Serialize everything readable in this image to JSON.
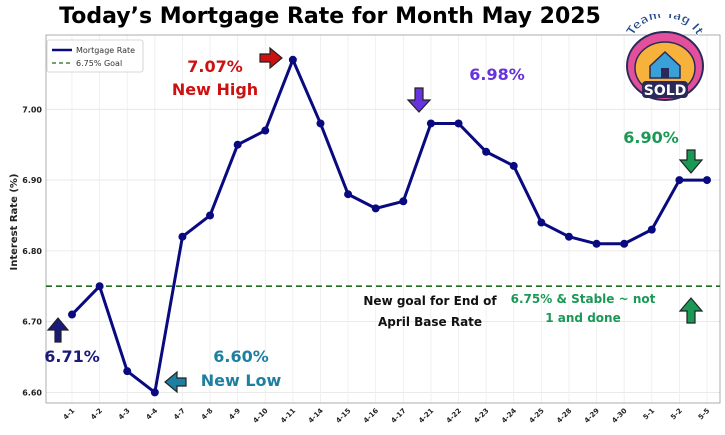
{
  "chart_data": {
    "type": "line",
    "title": "Today’s Mortgage Rate for Month May 2025",
    "xlabel": "",
    "ylabel": "Interest Rate (%)",
    "categories": [
      "4-1",
      "4-2",
      "4-3",
      "4-4",
      "4-7",
      "4-8",
      "4-9",
      "4-10",
      "4-11",
      "4-14",
      "4-15",
      "4-16",
      "4-17",
      "4-21",
      "4-22",
      "4-23",
      "4-24",
      "4-25",
      "4-28",
      "4-29",
      "4-30",
      "5-1",
      "5-2",
      "5-5"
    ],
    "series": [
      {
        "name": "Mortgage Rate",
        "color": "#0a0a80",
        "values": [
          6.71,
          6.75,
          6.63,
          6.6,
          6.82,
          6.85,
          6.95,
          6.97,
          7.07,
          6.98,
          6.88,
          6.86,
          6.87,
          6.98,
          6.98,
          6.94,
          6.92,
          6.84,
          6.82,
          6.81,
          6.81,
          6.83,
          6.9,
          6.9
        ]
      }
    ],
    "reference_line": {
      "name": "6.75% Goal",
      "value": 6.75,
      "color": "#1e6b1e"
    },
    "yticks": [
      "6.60",
      "6.70",
      "6.80",
      "6.90",
      "7.00"
    ],
    "ylim": [
      6.585,
      7.105
    ],
    "grid": true,
    "legend_position": "top-left",
    "annotations": [
      {
        "lines": [
          "7.07%",
          "New High"
        ],
        "color": "#cc1111",
        "arrow_color": "#cc1111",
        "arrow": "right"
      },
      {
        "lines": [
          "6.98%"
        ],
        "color": "#6633dd",
        "arrow_color": "#6633dd",
        "arrow": "down"
      },
      {
        "lines": [
          "6.90%"
        ],
        "color": "#1a9955",
        "arrow_color": "#1a9955",
        "arrow": "down"
      },
      {
        "lines": [
          "6.71%"
        ],
        "color": "#1a1a7a",
        "arrow_color": "#1a1a7a",
        "arrow": "up"
      },
      {
        "lines": [
          "6.60%",
          "New Low"
        ],
        "color": "#1f7fa0",
        "arrow_color": "#1f7fa0",
        "arrow": "left"
      },
      {
        "lines": [
          "New goal for End of",
          "April Base Rate"
        ],
        "color": "#111111"
      },
      {
        "lines": [
          "6.75% & Stable ~ not",
          "1 and done"
        ],
        "color": "#1a9955",
        "arrow_color": "#1a9955",
        "arrow": "up"
      }
    ]
  },
  "logo": {
    "top_text": "Team Tag It",
    "bottom_text": "SOLD"
  }
}
